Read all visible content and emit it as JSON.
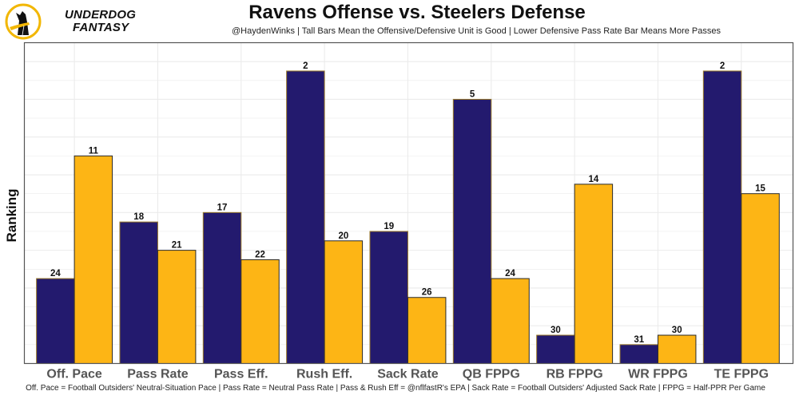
{
  "logo": {
    "line1": "UNDERDOG",
    "line2": "FANTASY",
    "icon": "underdog-dog-icon"
  },
  "colors": {
    "offense": "#231a6e",
    "defense": "#fdb515",
    "offense_border": "#9a7a2a",
    "defense_border": "#2a2a2a",
    "label_gray": "#555555"
  },
  "chart_data": {
    "type": "bar",
    "title": "Ravens Offense vs. Steelers Defense",
    "subtitle": "@HaydenWinks | Tall Bars Mean the Offensive/Defensive Unit is Good | Lower Defensive Pass Rate Bar Means More Passes",
    "footnote": "Off. Pace = Football Outsiders' Neutral-Situation Pace | Pass Rate = Neutral Pass Rate | Pass & Rush Eff = @nflfastR's EPA | Sack Rate = Football Outsiders' Adjusted Sack Rate | FPPG = Half-PPR Per Game",
    "xlabel": "",
    "ylabel": "Ranking",
    "categories": [
      "Off. Pace",
      "Pass Rate",
      "Pass Eff.",
      "Rush Eff.",
      "Sack Rate",
      "QB FPPG",
      "RB FPPG",
      "WR FPPG",
      "TE FPPG"
    ],
    "series": [
      {
        "name": "Ravens Offense",
        "ranks": [
          24,
          18,
          17,
          2,
          19,
          5,
          30,
          31,
          2
        ]
      },
      {
        "name": "Steelers Defense",
        "ranks": [
          11,
          21,
          22,
          20,
          26,
          24,
          14,
          30,
          15
        ]
      }
    ],
    "bar_height_rule": "height = 33 - rank",
    "ylim": [
      0,
      34
    ],
    "y_ticks_shown": false,
    "grid": true,
    "legend": "none"
  }
}
